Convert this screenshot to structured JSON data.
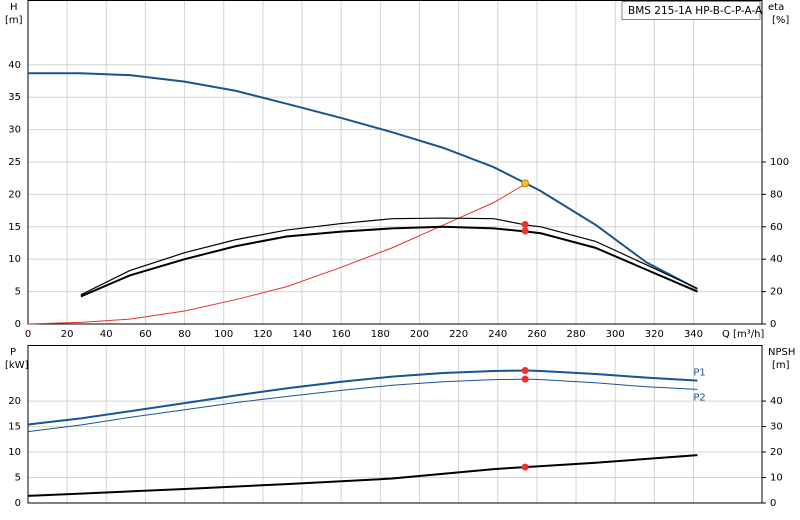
{
  "chart_data": [
    {
      "type": "line",
      "title": "BMS 215-1A HP-B-C-P-A-A",
      "ylabel": "H",
      "yunit": "[m]",
      "y2label": "eta",
      "y2unit": "[%]",
      "xlabel": "Q [m³/h]",
      "xlim": [
        0,
        375
      ],
      "xticks": [
        0,
        20,
        40,
        60,
        80,
        100,
        120,
        140,
        160,
        180,
        200,
        220,
        240,
        260,
        280,
        300,
        320,
        340
      ],
      "show_xtick_labels": true,
      "ylim": [
        0,
        50
      ],
      "yticks": [
        0,
        5,
        10,
        15,
        20,
        25,
        30,
        35,
        40
      ],
      "y2lim": [
        0,
        200
      ],
      "y2ticks": [
        0,
        20,
        40,
        60,
        80,
        100
      ],
      "grid": true,
      "series": [
        {
          "color": "#1a5493",
          "line_width": 2,
          "axis": "y",
          "x": [
            0,
            27,
            52,
            80,
            106,
            132,
            160,
            186,
            212,
            238,
            255,
            262,
            290,
            316,
            342
          ],
          "values": [
            38.7,
            38.7,
            38.4,
            37.4,
            36,
            34,
            31.8,
            29.6,
            27.2,
            24.2,
            21.6,
            20.5,
            15.3,
            9.5,
            5.4
          ]
        },
        {
          "color": "#e8322e",
          "line_width": 1,
          "axis": "y2",
          "x": [
            0,
            27,
            52,
            80,
            106,
            132,
            160,
            186,
            212,
            238,
            255
          ],
          "values": [
            0,
            1,
            3,
            8,
            15,
            23,
            35,
            47,
            61,
            75,
            87
          ]
        },
        {
          "color": "#000000",
          "line_width": 1.2,
          "axis": "y2",
          "x": [
            27,
            52,
            80,
            106,
            132,
            160,
            186,
            212,
            238,
            255,
            262,
            290,
            342
          ],
          "values": [
            18,
            33,
            44,
            52,
            58,
            62,
            65,
            65.4,
            65,
            61,
            60,
            51,
            22
          ]
        },
        {
          "color": "#000000",
          "line_width": 2,
          "axis": "y2",
          "x": [
            27,
            52,
            80,
            106,
            132,
            160,
            186,
            212,
            238,
            255,
            262,
            290,
            342
          ],
          "values": [
            17,
            30,
            40,
            48,
            54,
            57,
            59,
            60,
            59,
            57,
            56,
            47,
            20
          ]
        }
      ],
      "markers": [
        {
          "x": 254,
          "y": 21.7,
          "axis": "y",
          "color": "#f5c518"
        },
        {
          "x": 254,
          "y": 61.4,
          "axis": "y2",
          "color": "#e8322e"
        },
        {
          "x": 254,
          "y": 57.4,
          "axis": "y2",
          "color": "#e8322e"
        }
      ]
    },
    {
      "type": "line",
      "ylabel": "P",
      "yunit": "[kW]",
      "y2label": "NPSH",
      "y2unit": "[m]",
      "xlim": [
        0,
        375
      ],
      "xticks": [
        0,
        20,
        40,
        60,
        80,
        100,
        120,
        140,
        160,
        180,
        200,
        220,
        240,
        260,
        280,
        300,
        320,
        340
      ],
      "show_xtick_labels": false,
      "ylim": [
        0,
        31
      ],
      "yticks": [
        0,
        5,
        10,
        15,
        20
      ],
      "y2lim": [
        0,
        62
      ],
      "y2ticks": [
        0,
        10,
        20,
        30,
        40
      ],
      "grid": true,
      "series": [
        {
          "name": "P1",
          "color": "#1a5493",
          "line_width": 2,
          "axis": "y",
          "x": [
            0,
            27,
            52,
            80,
            106,
            132,
            160,
            186,
            212,
            238,
            255,
            262,
            290,
            316,
            342
          ],
          "values": [
            15.4,
            16.6,
            18,
            19.6,
            21.1,
            22.5,
            23.8,
            24.8,
            25.5,
            25.9,
            26,
            25.9,
            25.3,
            24.6,
            24
          ]
        },
        {
          "name": "P2",
          "color": "#1a5493",
          "line_width": 1,
          "axis": "y",
          "x": [
            0,
            27,
            52,
            80,
            106,
            132,
            160,
            186,
            212,
            238,
            255,
            262,
            290,
            316,
            342
          ],
          "values": [
            14,
            15.3,
            16.8,
            18.3,
            19.7,
            20.9,
            22.1,
            23.1,
            23.8,
            24.2,
            24.3,
            24.2,
            23.6,
            22.8,
            22.3
          ]
        },
        {
          "color": "#000000",
          "line_width": 2,
          "axis": "y2",
          "x": [
            0,
            27,
            80,
            132,
            186,
            238,
            254,
            290,
            342
          ],
          "values": [
            2.8,
            3.7,
            5.5,
            7.4,
            9.6,
            13.3,
            14.1,
            15.8,
            18.8
          ]
        }
      ],
      "markers": [
        {
          "x": 254,
          "y": 26,
          "axis": "y",
          "color": "#e8322e"
        },
        {
          "x": 254,
          "y": 24.3,
          "axis": "y",
          "color": "#e8322e"
        },
        {
          "x": 254,
          "y": 14.1,
          "axis": "y2",
          "color": "#e8322e"
        }
      ]
    }
  ]
}
